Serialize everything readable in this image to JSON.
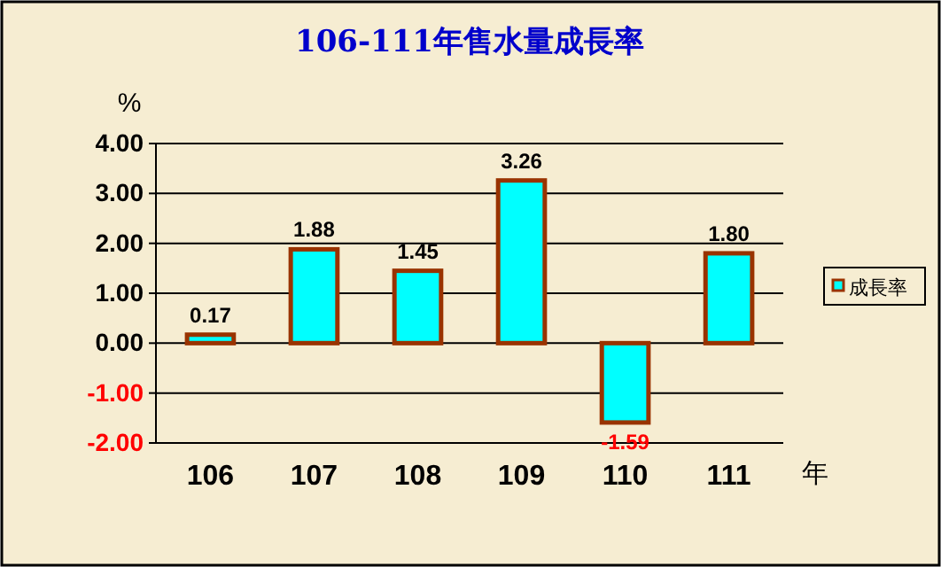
{
  "chart_data": {
    "type": "bar",
    "title": "106-111年售水量成長率",
    "ylabel": "%",
    "xlabel": "年",
    "categories": [
      "106",
      "107",
      "108",
      "109",
      "110",
      "111"
    ],
    "series": [
      {
        "name": "成長率",
        "color": "#00ffff",
        "values": [
          0.17,
          1.88,
          1.45,
          3.26,
          -1.59,
          1.8
        ],
        "value_labels": [
          "0.17",
          "1.88",
          "1.45",
          "3.26",
          "-1.59",
          "1.80"
        ]
      }
    ],
    "ylim": [
      -2,
      4
    ],
    "yticks": [
      {
        "value": -2,
        "label": "-2.00"
      },
      {
        "value": -1,
        "label": "-1.00"
      },
      {
        "value": 0,
        "label": "0.00"
      },
      {
        "value": 1,
        "label": "1.00"
      },
      {
        "value": 2,
        "label": "2.00"
      },
      {
        "value": 3,
        "label": "3.00"
      },
      {
        "value": 4,
        "label": "4.00"
      }
    ],
    "grid": "y",
    "legend": "right"
  }
}
